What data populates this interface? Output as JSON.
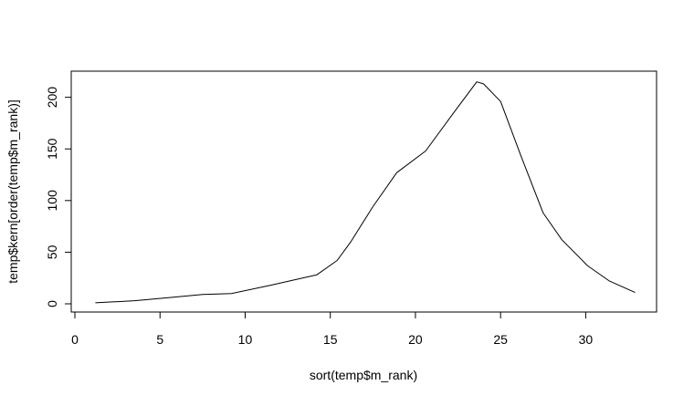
{
  "chart_data": {
    "type": "line",
    "title": "",
    "xlabel": "sort(temp$m_rank)",
    "ylabel": "temp$kern[order(temp$m_rank)]",
    "xlim": [
      0,
      34
    ],
    "ylim": [
      0,
      220
    ],
    "x_ticks": [
      0,
      5,
      10,
      15,
      20,
      25,
      30
    ],
    "y_ticks": [
      0,
      50,
      100,
      150,
      200
    ],
    "x_tick_labels": [
      "0",
      "5",
      "10",
      "15",
      "20",
      "25",
      "30"
    ],
    "y_tick_labels": [
      "0",
      "50",
      "100",
      "150",
      "200"
    ],
    "grid": false,
    "legend": "none",
    "line_color": "#000000",
    "series": [
      {
        "x": [
          1.2,
          3.5,
          5.5,
          7.5,
          9.2,
          11.5,
          14.2,
          15.4,
          16.2,
          17.5,
          18.9,
          20.6,
          22.2,
          23.6,
          24.0,
          25.0,
          26.2,
          27.5,
          28.6,
          30.1,
          31.4,
          32.9
        ],
        "y": [
          1,
          3,
          6,
          9,
          10,
          18,
          28,
          42,
          60,
          94,
          127,
          148,
          184,
          215,
          213,
          196,
          143,
          88,
          62,
          37,
          22,
          11
        ]
      }
    ]
  }
}
